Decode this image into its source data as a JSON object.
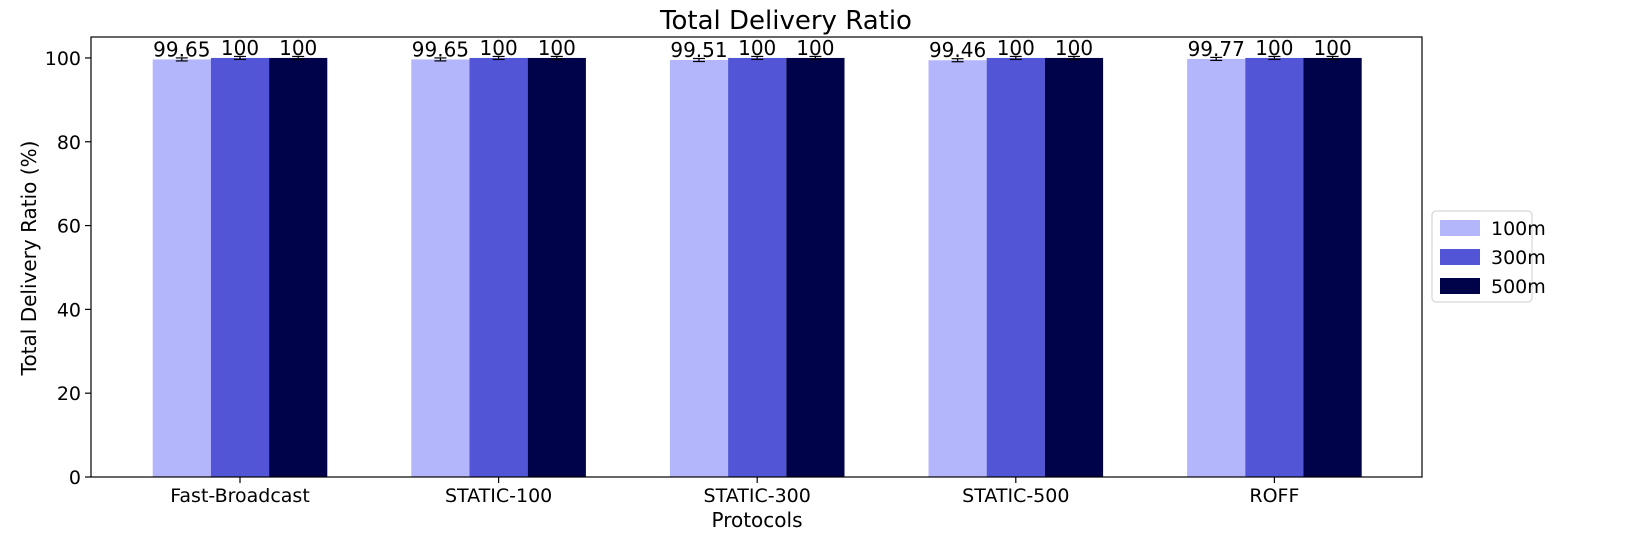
{
  "chart_data": {
    "type": "bar",
    "title": "Total Delivery Ratio",
    "xlabel": "Protocols",
    "ylabel": "Total Delivery Ratio (%)",
    "categories": [
      "Fast-Broadcast",
      "STATIC-100",
      "STATIC-300",
      "STATIC-500",
      "ROFF"
    ],
    "series": [
      {
        "name": "100m",
        "color": "#b4b6fc",
        "values": [
          99.65,
          99.65,
          99.51,
          99.46,
          99.77
        ],
        "value_labels": [
          "99.65",
          "99.65",
          "99.51",
          "99.46",
          "99.77"
        ]
      },
      {
        "name": "300m",
        "color": "#5155d6",
        "values": [
          100,
          100,
          100,
          100,
          100
        ],
        "value_labels": [
          "100",
          "100",
          "100",
          "100",
          "100"
        ]
      },
      {
        "name": "500m",
        "color": "#00024a",
        "values": [
          100,
          100,
          100,
          100,
          100
        ],
        "value_labels": [
          "100",
          "100",
          "100",
          "100",
          "100"
        ]
      }
    ],
    "error_bars": true,
    "ylim": [
      0,
      105
    ],
    "yticks": [
      0,
      20,
      40,
      60,
      80,
      100
    ],
    "grid": false,
    "legend_position": "right, outside plot"
  }
}
